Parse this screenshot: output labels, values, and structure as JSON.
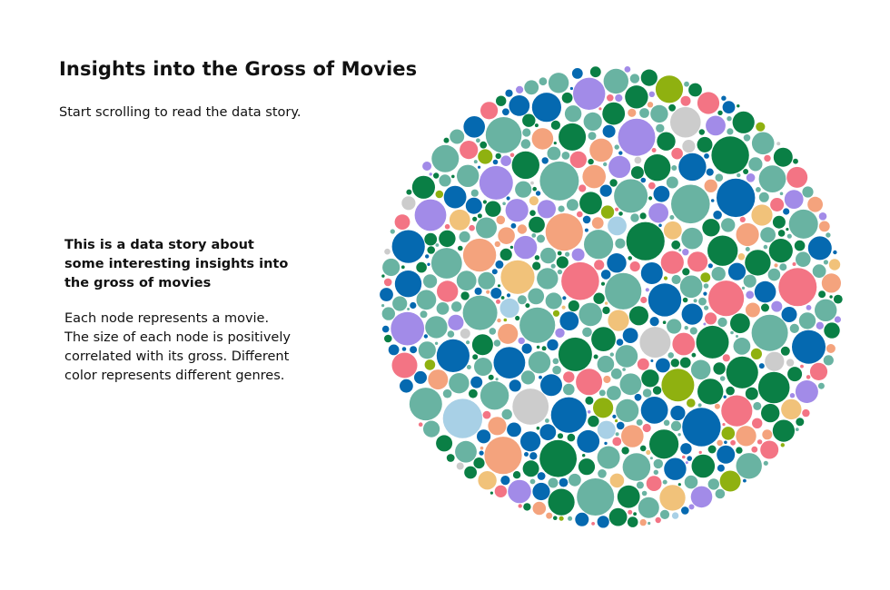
{
  "page": {
    "title": "Insights into the Gross of Movies",
    "subtitle": "Start scrolling to read the data story."
  },
  "story": {
    "heading": "This is a data story about some interesting insights into the gross of movies",
    "body": "Each node represents a movie. The size of each node is positively correlated with its gross. Different color represents different genres."
  },
  "chart_data": {
    "type": "bubble",
    "node_count": 1200,
    "encoding": {
      "size": "gross",
      "color": "genre"
    },
    "genre_palette": [
      "#69b3a2",
      "#0569b0",
      "#0a7f45",
      "#f37484",
      "#a28be8",
      "#f4a37d",
      "#f1c27a",
      "#8fb110",
      "#cccccc",
      "#a8d0e6"
    ],
    "genre_weights": [
      0.3,
      0.2,
      0.2,
      0.07,
      0.08,
      0.06,
      0.03,
      0.03,
      0.02,
      0.01
    ]
  }
}
